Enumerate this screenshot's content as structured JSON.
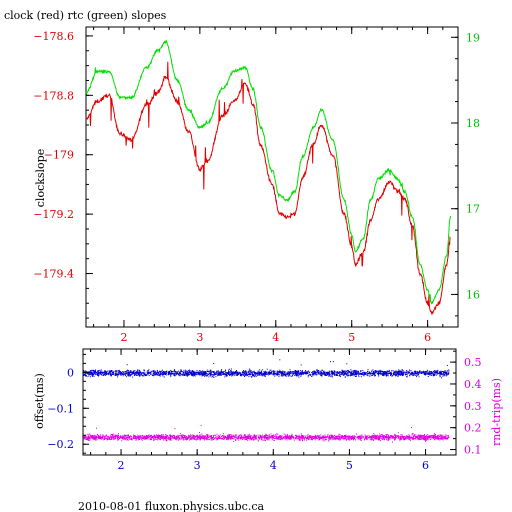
{
  "title": "clock (red) rtc (green) slopes",
  "footer": "2010-08-01 fluxon.physics.ubc.ca",
  "colors": {
    "red": "#e00000",
    "green": "#00e000",
    "green_text": "#00c000",
    "blue": "#0000c8",
    "magenta": "#e000e0",
    "axis": "#000000"
  },
  "chart_data": [
    {
      "type": "line",
      "title": "clock (red) rtc (green) slopes",
      "xlabel": "",
      "ylabel": "clockslope",
      "xlim": [
        1.5,
        6.4
      ],
      "ylim": [
        -179.58,
        -178.57
      ],
      "y2lim": [
        15.62,
        19.12
      ],
      "x_ticks": [
        "2",
        "3",
        "4",
        "5",
        "6"
      ],
      "y_ticks": [
        "-178.6",
        "-178.8",
        "-179",
        "-179.2",
        "-179.4"
      ],
      "y2_ticks": [
        "19",
        "18",
        "17",
        "16"
      ],
      "legend": "in title",
      "grid": false,
      "series": [
        {
          "name": "clock",
          "color": "red",
          "axis": "left",
          "x": [
            1.5,
            1.65,
            1.8,
            1.95,
            2.1,
            2.3,
            2.45,
            2.55,
            2.7,
            2.85,
            3.0,
            3.1,
            3.3,
            3.45,
            3.6,
            3.7,
            3.8,
            3.95,
            4.05,
            4.15,
            4.25,
            4.35,
            4.5,
            4.6,
            4.75,
            4.9,
            5.0,
            5.05,
            5.15,
            5.25,
            5.35,
            5.5,
            5.6,
            5.7,
            5.8,
            5.9,
            6.0,
            6.05,
            6.15,
            6.25,
            6.3
          ],
          "y": [
            -178.88,
            -178.82,
            -178.8,
            -178.93,
            -178.95,
            -178.83,
            -178.79,
            -178.74,
            -178.82,
            -178.92,
            -179.05,
            -179.02,
            -178.87,
            -178.82,
            -178.76,
            -178.83,
            -178.97,
            -179.1,
            -179.2,
            -179.21,
            -179.2,
            -179.08,
            -178.96,
            -178.9,
            -179.0,
            -179.2,
            -179.31,
            -179.37,
            -179.33,
            -179.22,
            -179.15,
            -179.09,
            -179.12,
            -179.15,
            -179.24,
            -179.4,
            -179.5,
            -179.53,
            -179.5,
            -179.37,
            -179.28
          ]
        },
        {
          "name": "rtc",
          "color": "green",
          "axis": "right",
          "x": [
            1.5,
            1.65,
            1.8,
            1.95,
            2.1,
            2.3,
            2.45,
            2.55,
            2.7,
            2.85,
            3.0,
            3.1,
            3.3,
            3.45,
            3.6,
            3.7,
            3.8,
            3.95,
            4.05,
            4.15,
            4.25,
            4.35,
            4.5,
            4.6,
            4.75,
            4.9,
            5.0,
            5.05,
            5.15,
            5.25,
            5.35,
            5.5,
            5.6,
            5.7,
            5.8,
            5.9,
            6.0,
            6.05,
            6.15,
            6.25,
            6.3
          ],
          "y": [
            18.35,
            18.6,
            18.6,
            18.3,
            18.3,
            18.65,
            18.85,
            18.95,
            18.5,
            18.15,
            17.95,
            18.0,
            18.4,
            18.6,
            18.65,
            18.4,
            17.95,
            17.45,
            17.15,
            17.1,
            17.2,
            17.6,
            17.95,
            18.15,
            17.8,
            17.1,
            16.7,
            16.5,
            16.65,
            17.1,
            17.35,
            17.45,
            17.35,
            17.2,
            16.9,
            16.35,
            16.05,
            15.9,
            16.05,
            16.45,
            16.9
          ]
        }
      ]
    },
    {
      "type": "scatter",
      "title": "",
      "xlabel": "",
      "ylabel": "offset(ms)",
      "y2label": "rnd-trip(ms)",
      "xlim": [
        1.5,
        6.4
      ],
      "ylim": [
        -0.23,
        0.065
      ],
      "y2lim": [
        0.075,
        0.56
      ],
      "x_ticks": [
        "2",
        "3",
        "4",
        "5",
        "6"
      ],
      "y_ticks": [
        "0",
        "-0.1",
        "-0.2"
      ],
      "y2_ticks": [
        "0.5",
        "0.4",
        "0.3",
        "0.2",
        "0.1"
      ],
      "grid": false,
      "series": [
        {
          "name": "offset",
          "color": "blue",
          "axis": "left",
          "x_range": [
            1.5,
            6.3
          ],
          "y_center": -0.001,
          "y_spread": 0.009
        },
        {
          "name": "rnd-trip",
          "color": "magenta",
          "axis": "right",
          "x_range": [
            1.5,
            6.3
          ],
          "y_center": 0.158,
          "y_spread": 0.013
        }
      ]
    }
  ]
}
